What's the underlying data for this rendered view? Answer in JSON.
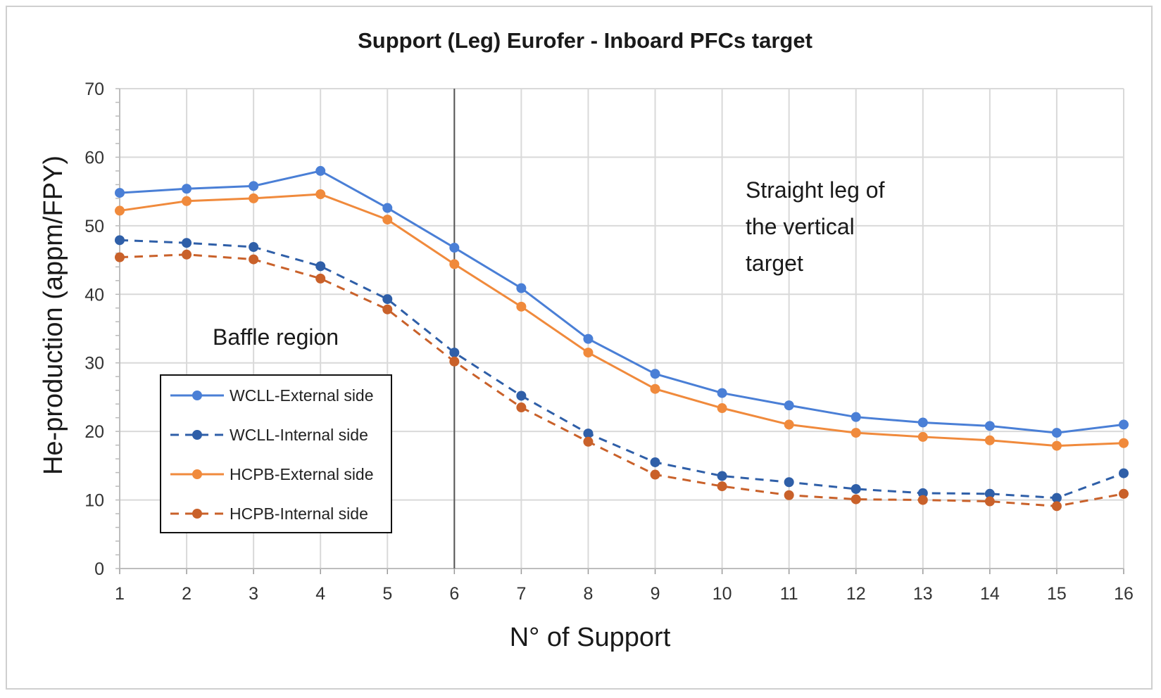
{
  "chart_data": {
    "type": "line",
    "title": "Support (Leg) Eurofer - Inboard PFCs target",
    "xlabel": "N° of Support",
    "ylabel": "He-production  (appm/FPY)",
    "x": [
      1,
      2,
      3,
      4,
      5,
      6,
      7,
      8,
      9,
      10,
      11,
      12,
      13,
      14,
      15,
      16
    ],
    "x_tick_labels": [
      "1",
      "2",
      "3",
      "4",
      "5",
      "6",
      "7",
      "8",
      "9",
      "10",
      "11",
      "12",
      "13",
      "14",
      "15",
      "16"
    ],
    "ylim": [
      0,
      70
    ],
    "y_ticks": [
      0,
      10,
      20,
      30,
      40,
      50,
      60,
      70
    ],
    "y_tick_labels": [
      "0",
      "10",
      "20",
      "30",
      "40",
      "50",
      "60",
      "70"
    ],
    "grid": true,
    "vertical_marker_x": 6,
    "series": [
      {
        "name": "WCLL-External side",
        "style": "solid",
        "color": "#4a7fd6",
        "values": [
          54.8,
          55.4,
          55.8,
          58.0,
          52.6,
          46.8,
          40.9,
          33.5,
          28.4,
          25.6,
          23.8,
          22.1,
          21.3,
          20.8,
          19.8,
          21.0
        ]
      },
      {
        "name": "WCLL-Internal side",
        "style": "dashed",
        "color": "#2f5fa8",
        "values": [
          47.9,
          47.5,
          46.9,
          44.1,
          39.3,
          31.5,
          25.2,
          19.7,
          15.5,
          13.5,
          12.6,
          11.6,
          11.0,
          10.9,
          10.3,
          13.9
        ]
      },
      {
        "name": "HCPB-External side",
        "style": "solid",
        "color": "#f08a3c",
        "values": [
          52.2,
          53.6,
          54.0,
          54.6,
          50.9,
          44.4,
          38.2,
          31.5,
          26.2,
          23.4,
          21.0,
          19.8,
          19.2,
          18.7,
          17.9,
          18.3
        ]
      },
      {
        "name": "HCPB-Internal side",
        "style": "dashed",
        "color": "#c9612a",
        "values": [
          45.4,
          45.8,
          45.1,
          42.3,
          37.8,
          30.2,
          23.5,
          18.5,
          13.7,
          12.0,
          10.7,
          10.1,
          10.0,
          9.8,
          9.1,
          10.9
        ]
      }
    ],
    "annotations": [
      {
        "text_lines": [
          "Baffle region"
        ],
        "placement": "left of vertical marker"
      },
      {
        "text_lines": [
          "Straight leg of",
          "the vertical",
          "target"
        ],
        "placement": "right of vertical marker, upper area"
      }
    ],
    "legend": {
      "placement": "lower-left, inside plot"
    }
  }
}
